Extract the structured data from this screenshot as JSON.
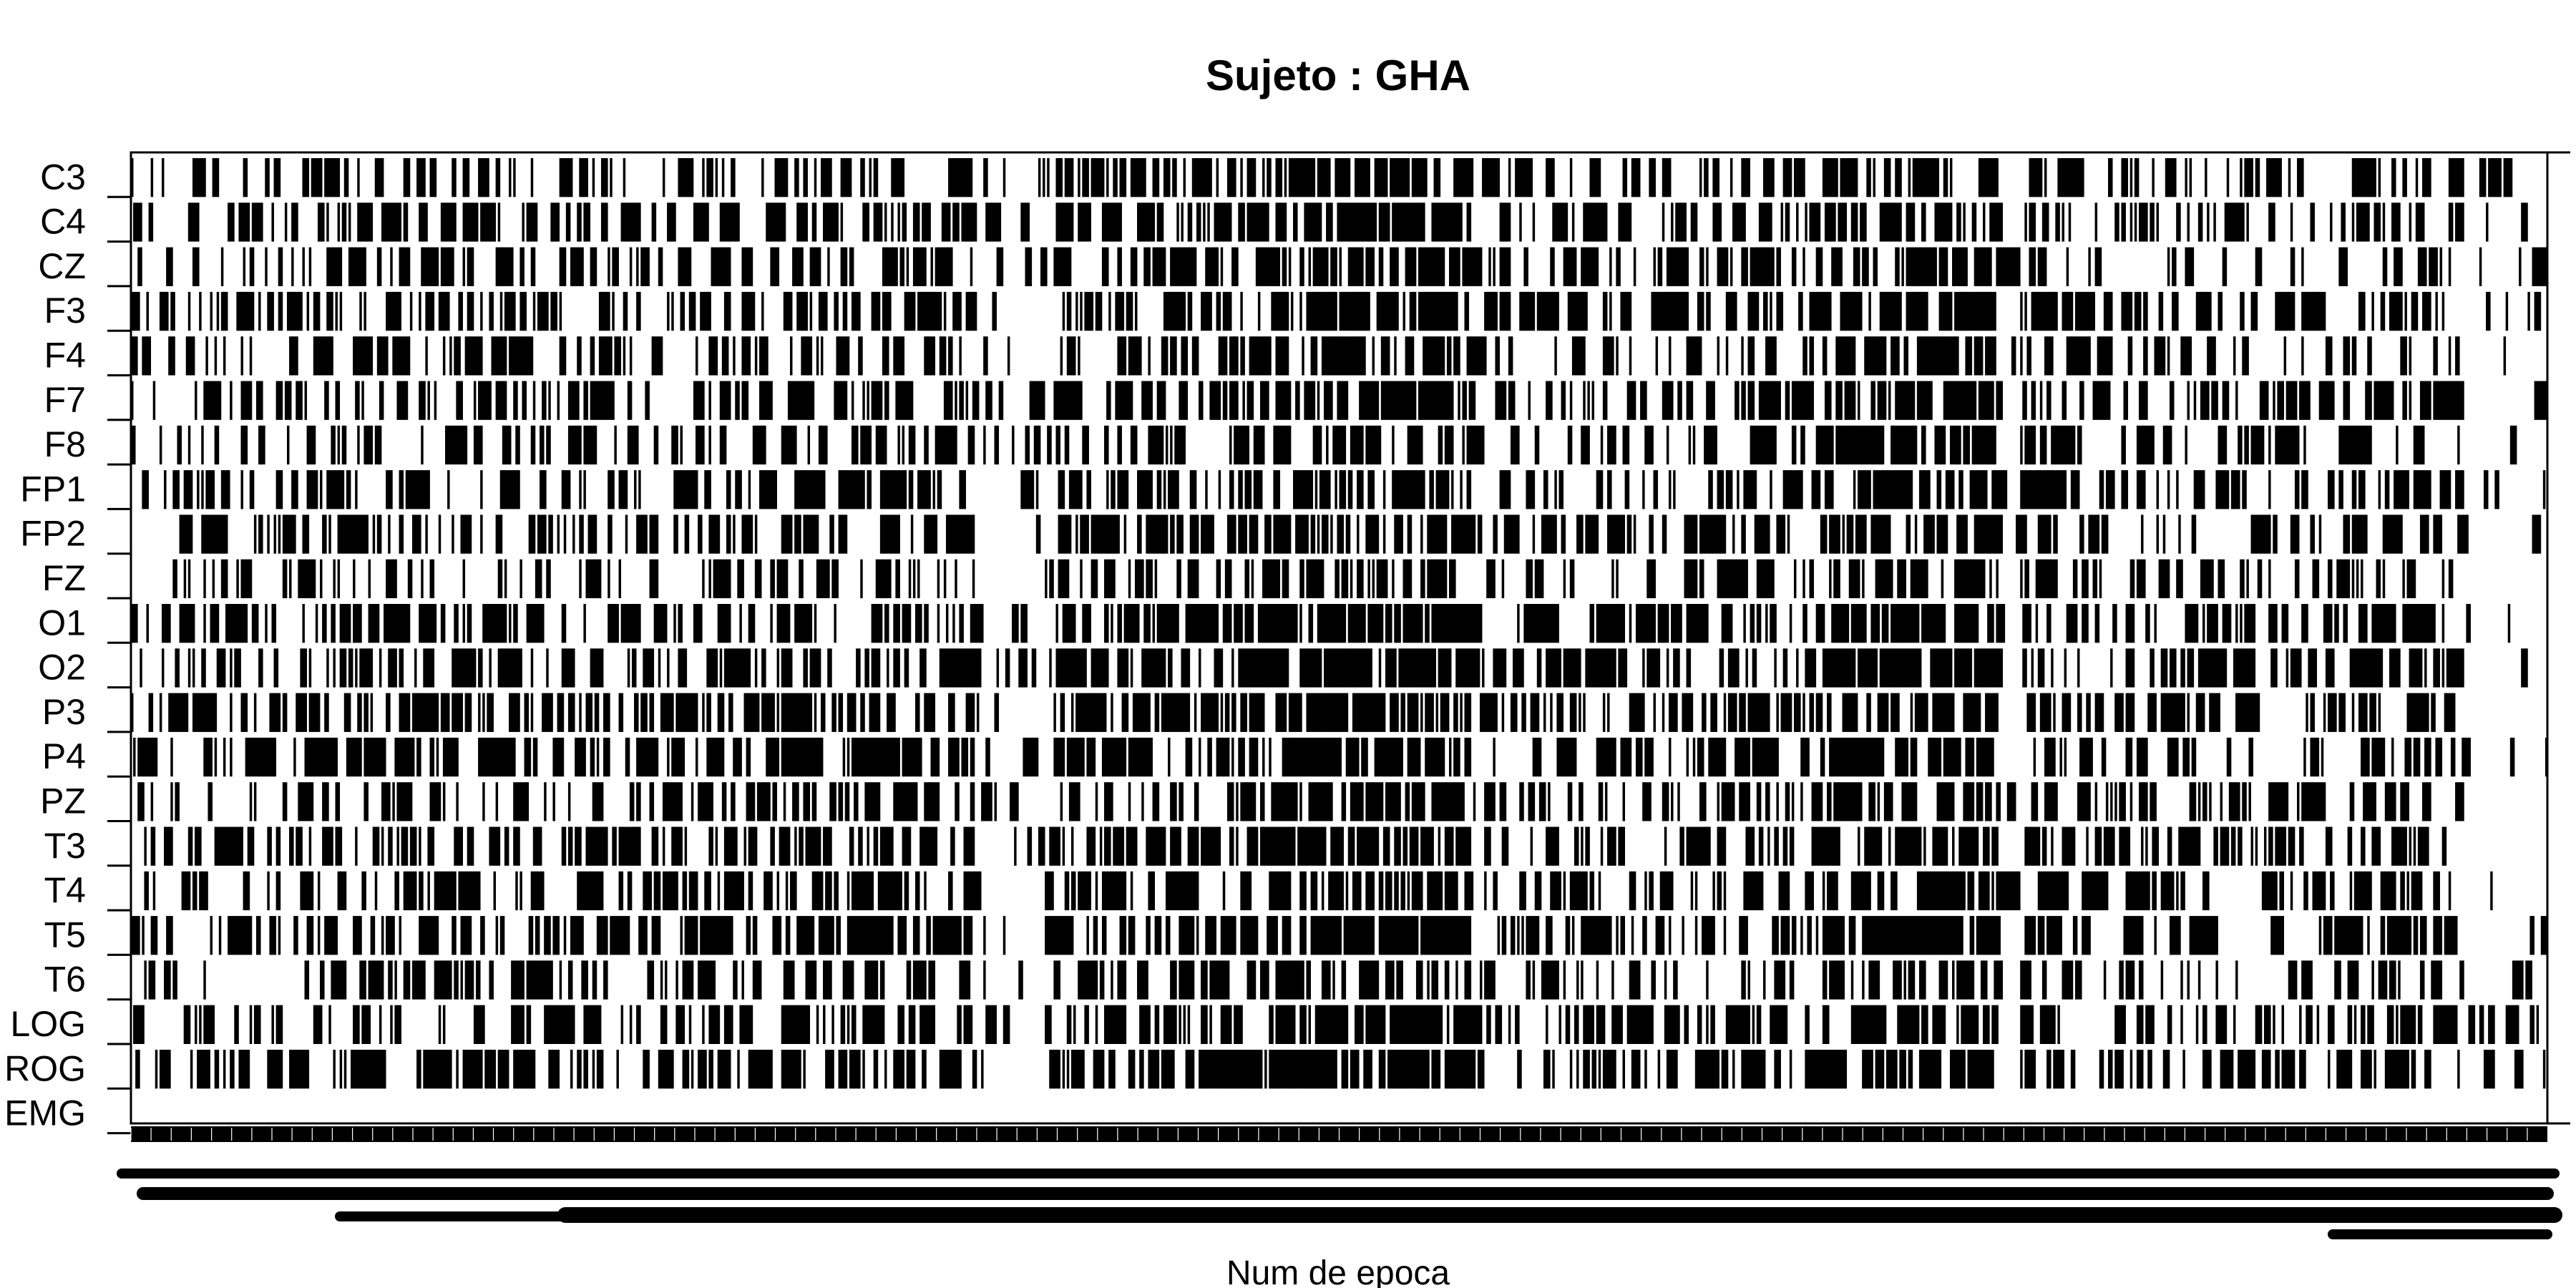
{
  "chart_data": {
    "type": "heatmap",
    "title": "Sujeto : GHA",
    "xlabel": "Num de epoca",
    "ylabel": "",
    "rows": [
      "C3",
      "C4",
      "CZ",
      "F3",
      "F4",
      "F7",
      "F8",
      "FP1",
      "FP2",
      "FZ",
      "O1",
      "O2",
      "P3",
      "P4",
      "PZ",
      "T3",
      "T4",
      "T5",
      "T6",
      "LOG",
      "ROG",
      "EMG"
    ],
    "epochs": 1100,
    "xlim": [
      1,
      1100
    ],
    "cell_colors": {
      "on": "#000000",
      "off": "#ffffff"
    },
    "activity_profile": {
      "segment_ends": [
        30,
        260,
        385,
        420,
        520,
        610,
        700,
        770,
        850,
        860,
        900,
        1000,
        1060,
        1100
      ],
      "segment_density": [
        0.3,
        0.42,
        0.5,
        0.18,
        0.58,
        0.85,
        0.35,
        0.45,
        0.82,
        0.05,
        0.45,
        0.38,
        0.52,
        0.1
      ]
    },
    "row_scale": [
      1.0,
      0.95,
      0.9,
      1.0,
      0.9,
      1.0,
      0.9,
      0.85,
      0.85,
      0.85,
      1.1,
      1.1,
      1.1,
      1.05,
      0.95,
      1.1,
      1.0,
      1.05,
      0.85,
      1.0,
      1.15,
      0.0
    ],
    "grid": false,
    "legend": "none"
  }
}
